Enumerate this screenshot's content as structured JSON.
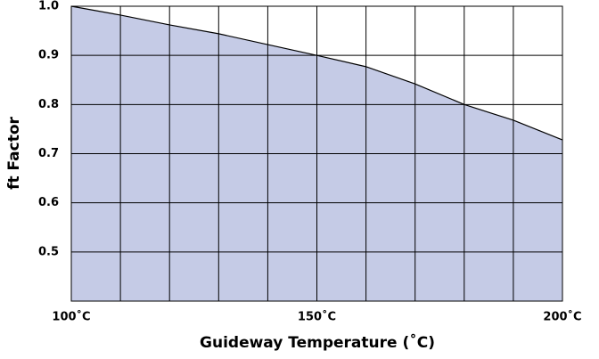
{
  "chart_data": {
    "type": "area",
    "xlabel": "Guideway Temperature (˚C)",
    "ylabel": "ft Factor",
    "x": [
      100,
      110,
      120,
      130,
      140,
      150,
      160,
      170,
      180,
      190,
      200
    ],
    "values": [
      1.0,
      0.982,
      0.962,
      0.944,
      0.922,
      0.9,
      0.877,
      0.842,
      0.8,
      0.768,
      0.728
    ],
    "color": "#c5cbe6",
    "xlim": [
      100,
      200
    ],
    "ylim": [
      0.4,
      1.0
    ],
    "xticks": [
      {
        "value": 100,
        "label": "100˚C"
      },
      {
        "value": 150,
        "label": "150˚C"
      },
      {
        "value": 200,
        "label": "200˚C"
      }
    ],
    "xgrid": [
      110,
      120,
      130,
      140,
      160,
      170,
      180,
      190
    ],
    "yticks": [
      0.5,
      0.6,
      0.7,
      0.8,
      0.9,
      {
        "value": 1.0,
        "label": "1.0"
      }
    ],
    "grid": true
  }
}
